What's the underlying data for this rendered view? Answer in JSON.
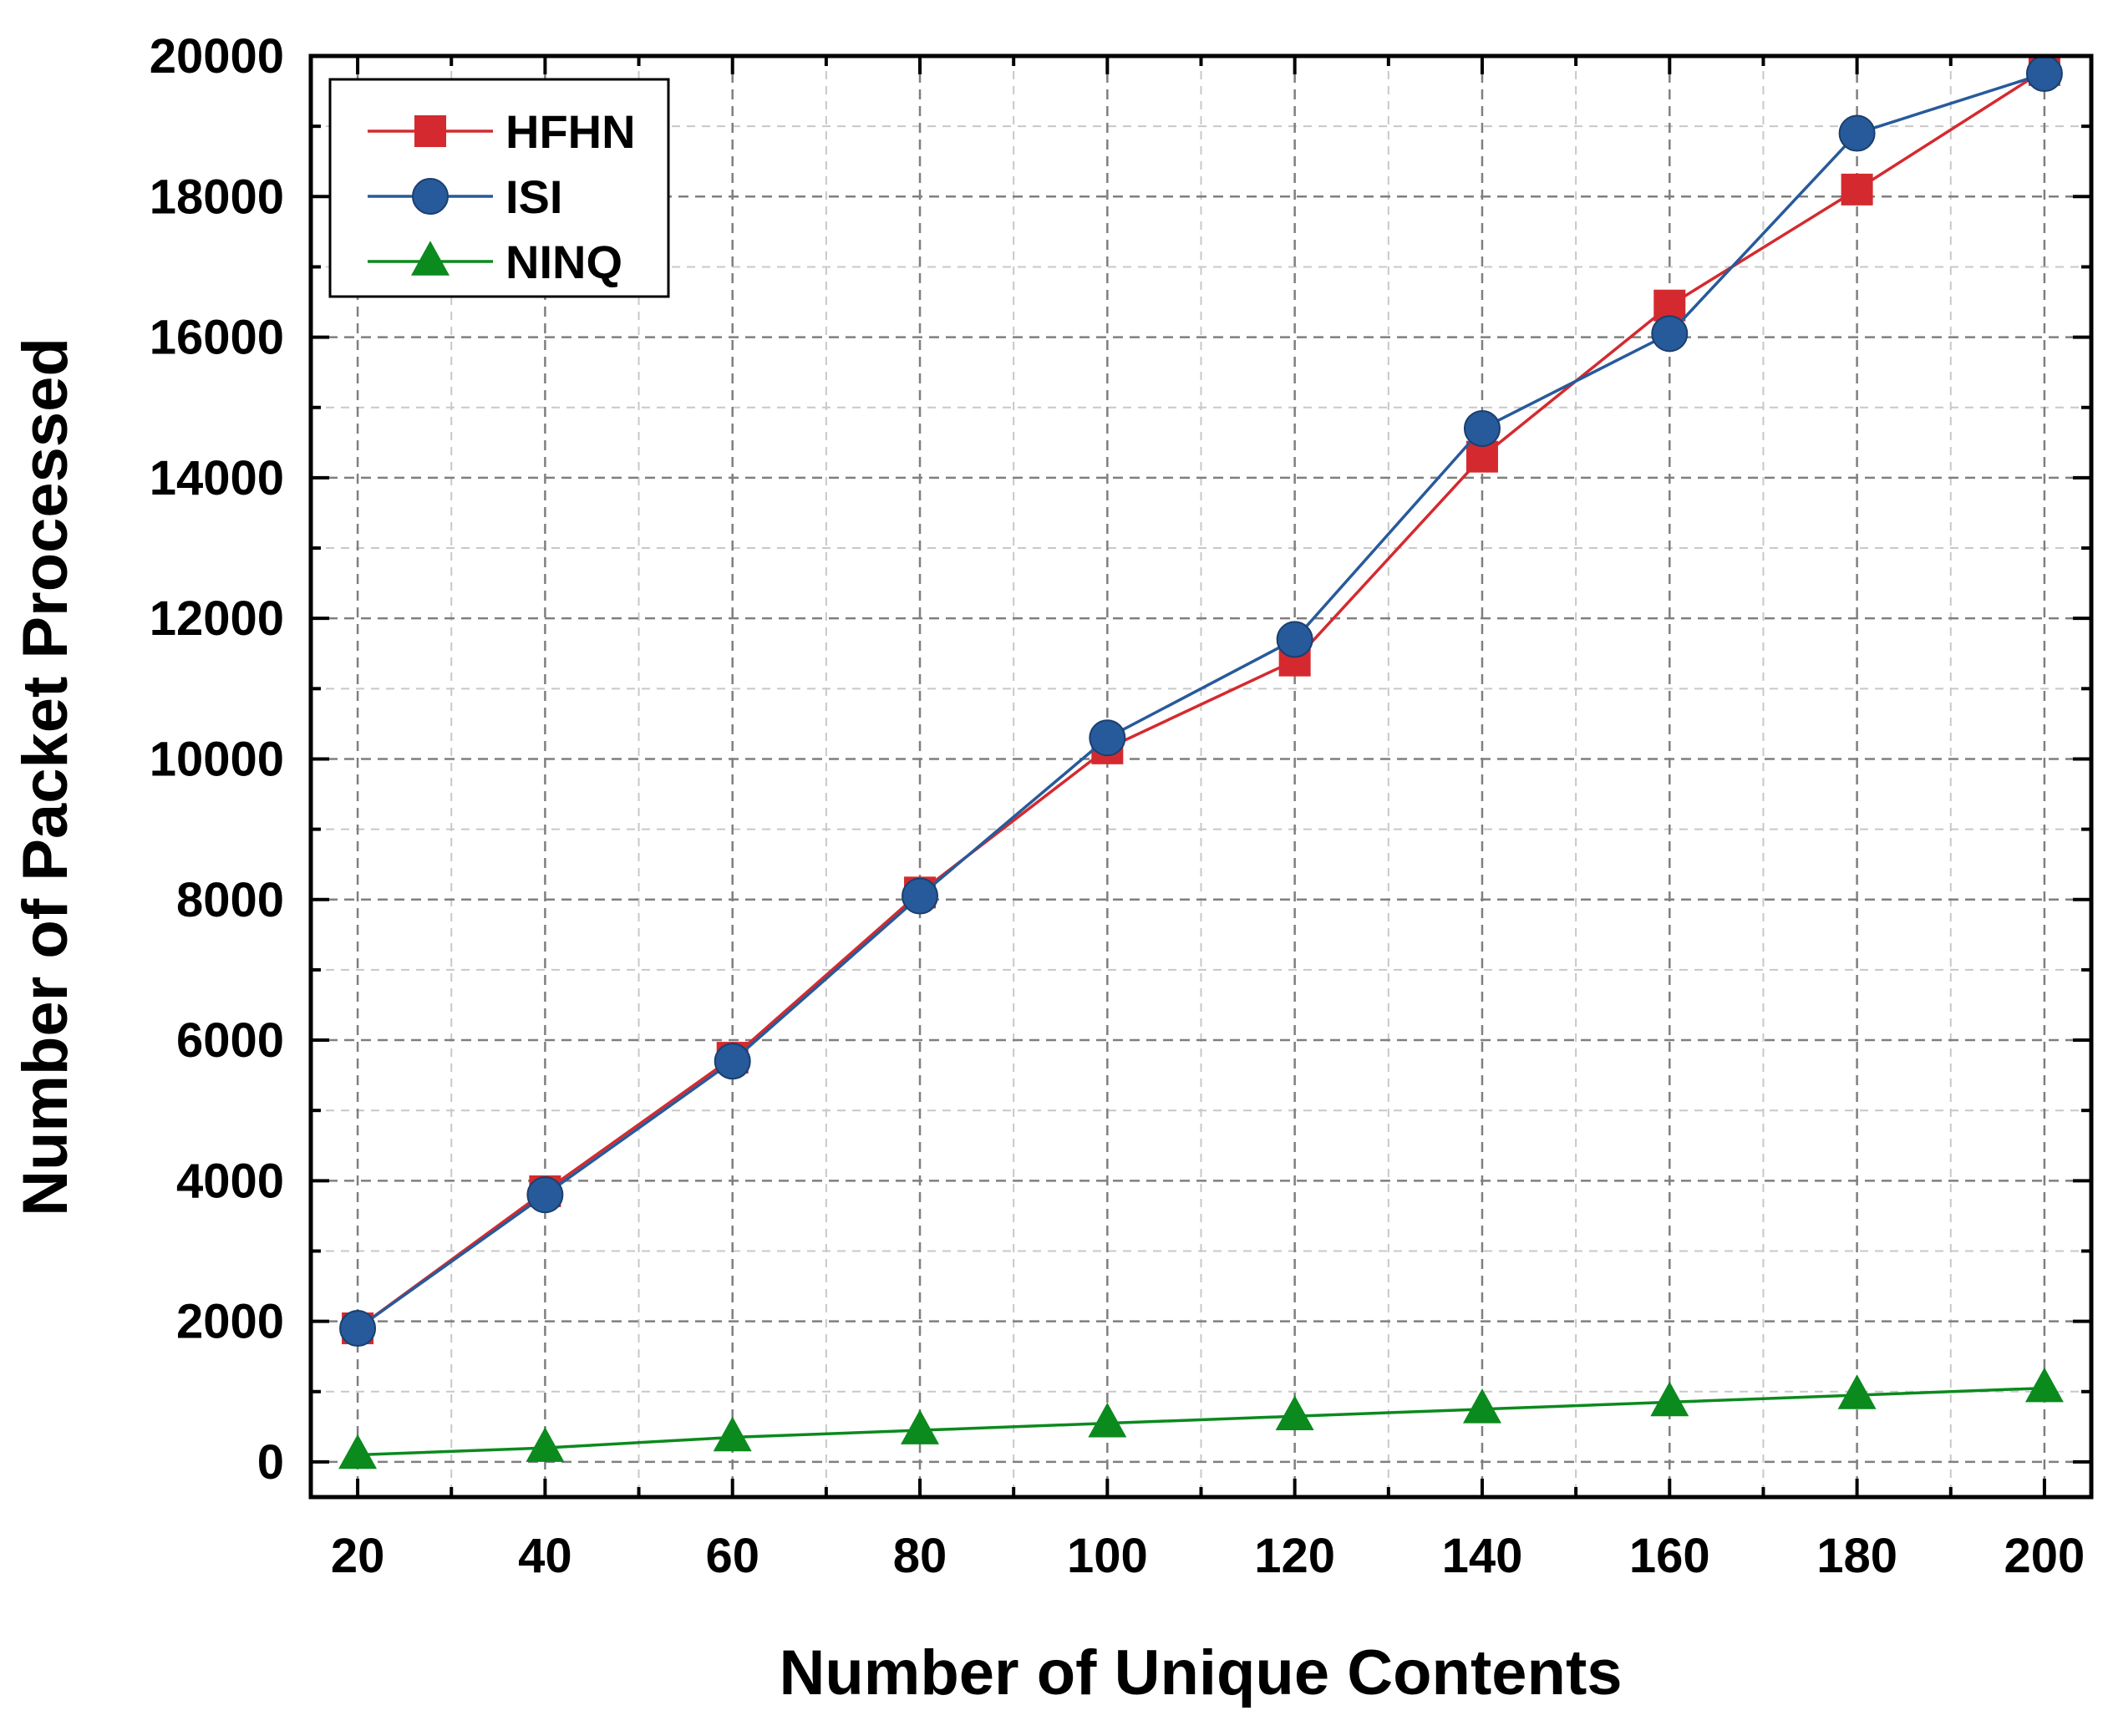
{
  "chart_data": {
    "type": "line",
    "title": "",
    "xlabel": "Number of Unique Contents",
    "ylabel": "Number of Packet Processed",
    "x": [
      20,
      40,
      60,
      80,
      100,
      120,
      140,
      160,
      180,
      200
    ],
    "xlim": [
      15,
      205
    ],
    "ylim": [
      -500,
      20000
    ],
    "xticks": [
      20,
      40,
      60,
      80,
      100,
      120,
      140,
      160,
      180,
      200
    ],
    "xtick_labels": [
      "20",
      "40",
      "60",
      "80",
      "100",
      "120",
      "140",
      "160",
      "180",
      "200"
    ],
    "yticks": [
      0,
      2000,
      4000,
      6000,
      8000,
      10000,
      12000,
      14000,
      16000,
      18000,
      20000
    ],
    "ytick_labels": [
      "0",
      "2000",
      "4000",
      "6000",
      "8000",
      "10000",
      "12000",
      "14000",
      "16000",
      "18000",
      "20000"
    ],
    "grid": true,
    "legend_position": "top-left",
    "series": [
      {
        "name": "HFHN",
        "marker": "square",
        "color": "#d42a2f",
        "values": [
          1900,
          3850,
          5750,
          8100,
          10150,
          11400,
          14300,
          16450,
          18100,
          19800
        ]
      },
      {
        "name": "ISI",
        "marker": "circle",
        "color": "#275a9a",
        "values": [
          1900,
          3800,
          5700,
          8050,
          10300,
          11700,
          14700,
          16050,
          18900,
          19750
        ]
      },
      {
        "name": "NINQ",
        "marker": "triangle",
        "color": "#0b8a1d",
        "values": [
          100,
          200,
          350,
          450,
          550,
          650,
          750,
          850,
          950,
          1050
        ]
      }
    ]
  }
}
